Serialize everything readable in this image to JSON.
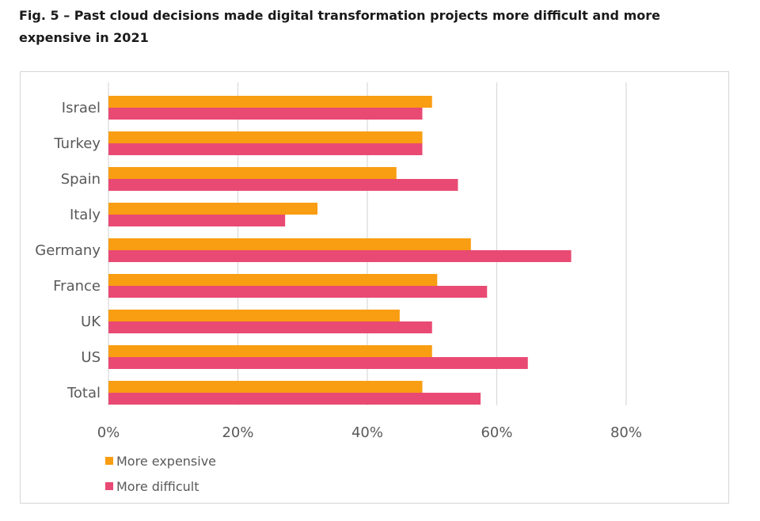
{
  "title": "Fig. 5 – Past cloud decisions made digital transformation projects more difficult and more expensive in 2021",
  "colors": {
    "expensive": "#f99d12",
    "difficult": "#e94a73",
    "grid": "#d9d9d9",
    "text": "#595959"
  },
  "chart_data": {
    "type": "bar",
    "orientation": "horizontal",
    "categories": [
      "Israel",
      "Turkey",
      "Spain",
      "Italy",
      "Germany",
      "France",
      "UK",
      "US",
      "Total"
    ],
    "series": [
      {
        "name": "More expensive",
        "values": [
          50,
          48.5,
          44.5,
          32.3,
          56,
          50.8,
          45,
          50,
          48.5
        ]
      },
      {
        "name": "More difficult",
        "values": [
          48.5,
          48.5,
          54,
          27.3,
          71.5,
          58.5,
          50,
          64.8,
          57.5
        ]
      }
    ],
    "xlim": [
      0,
      80
    ],
    "xticks": [
      "0%",
      "20%",
      "40%",
      "60%",
      "80%"
    ],
    "grid": true,
    "legend_position": "bottom-left"
  }
}
